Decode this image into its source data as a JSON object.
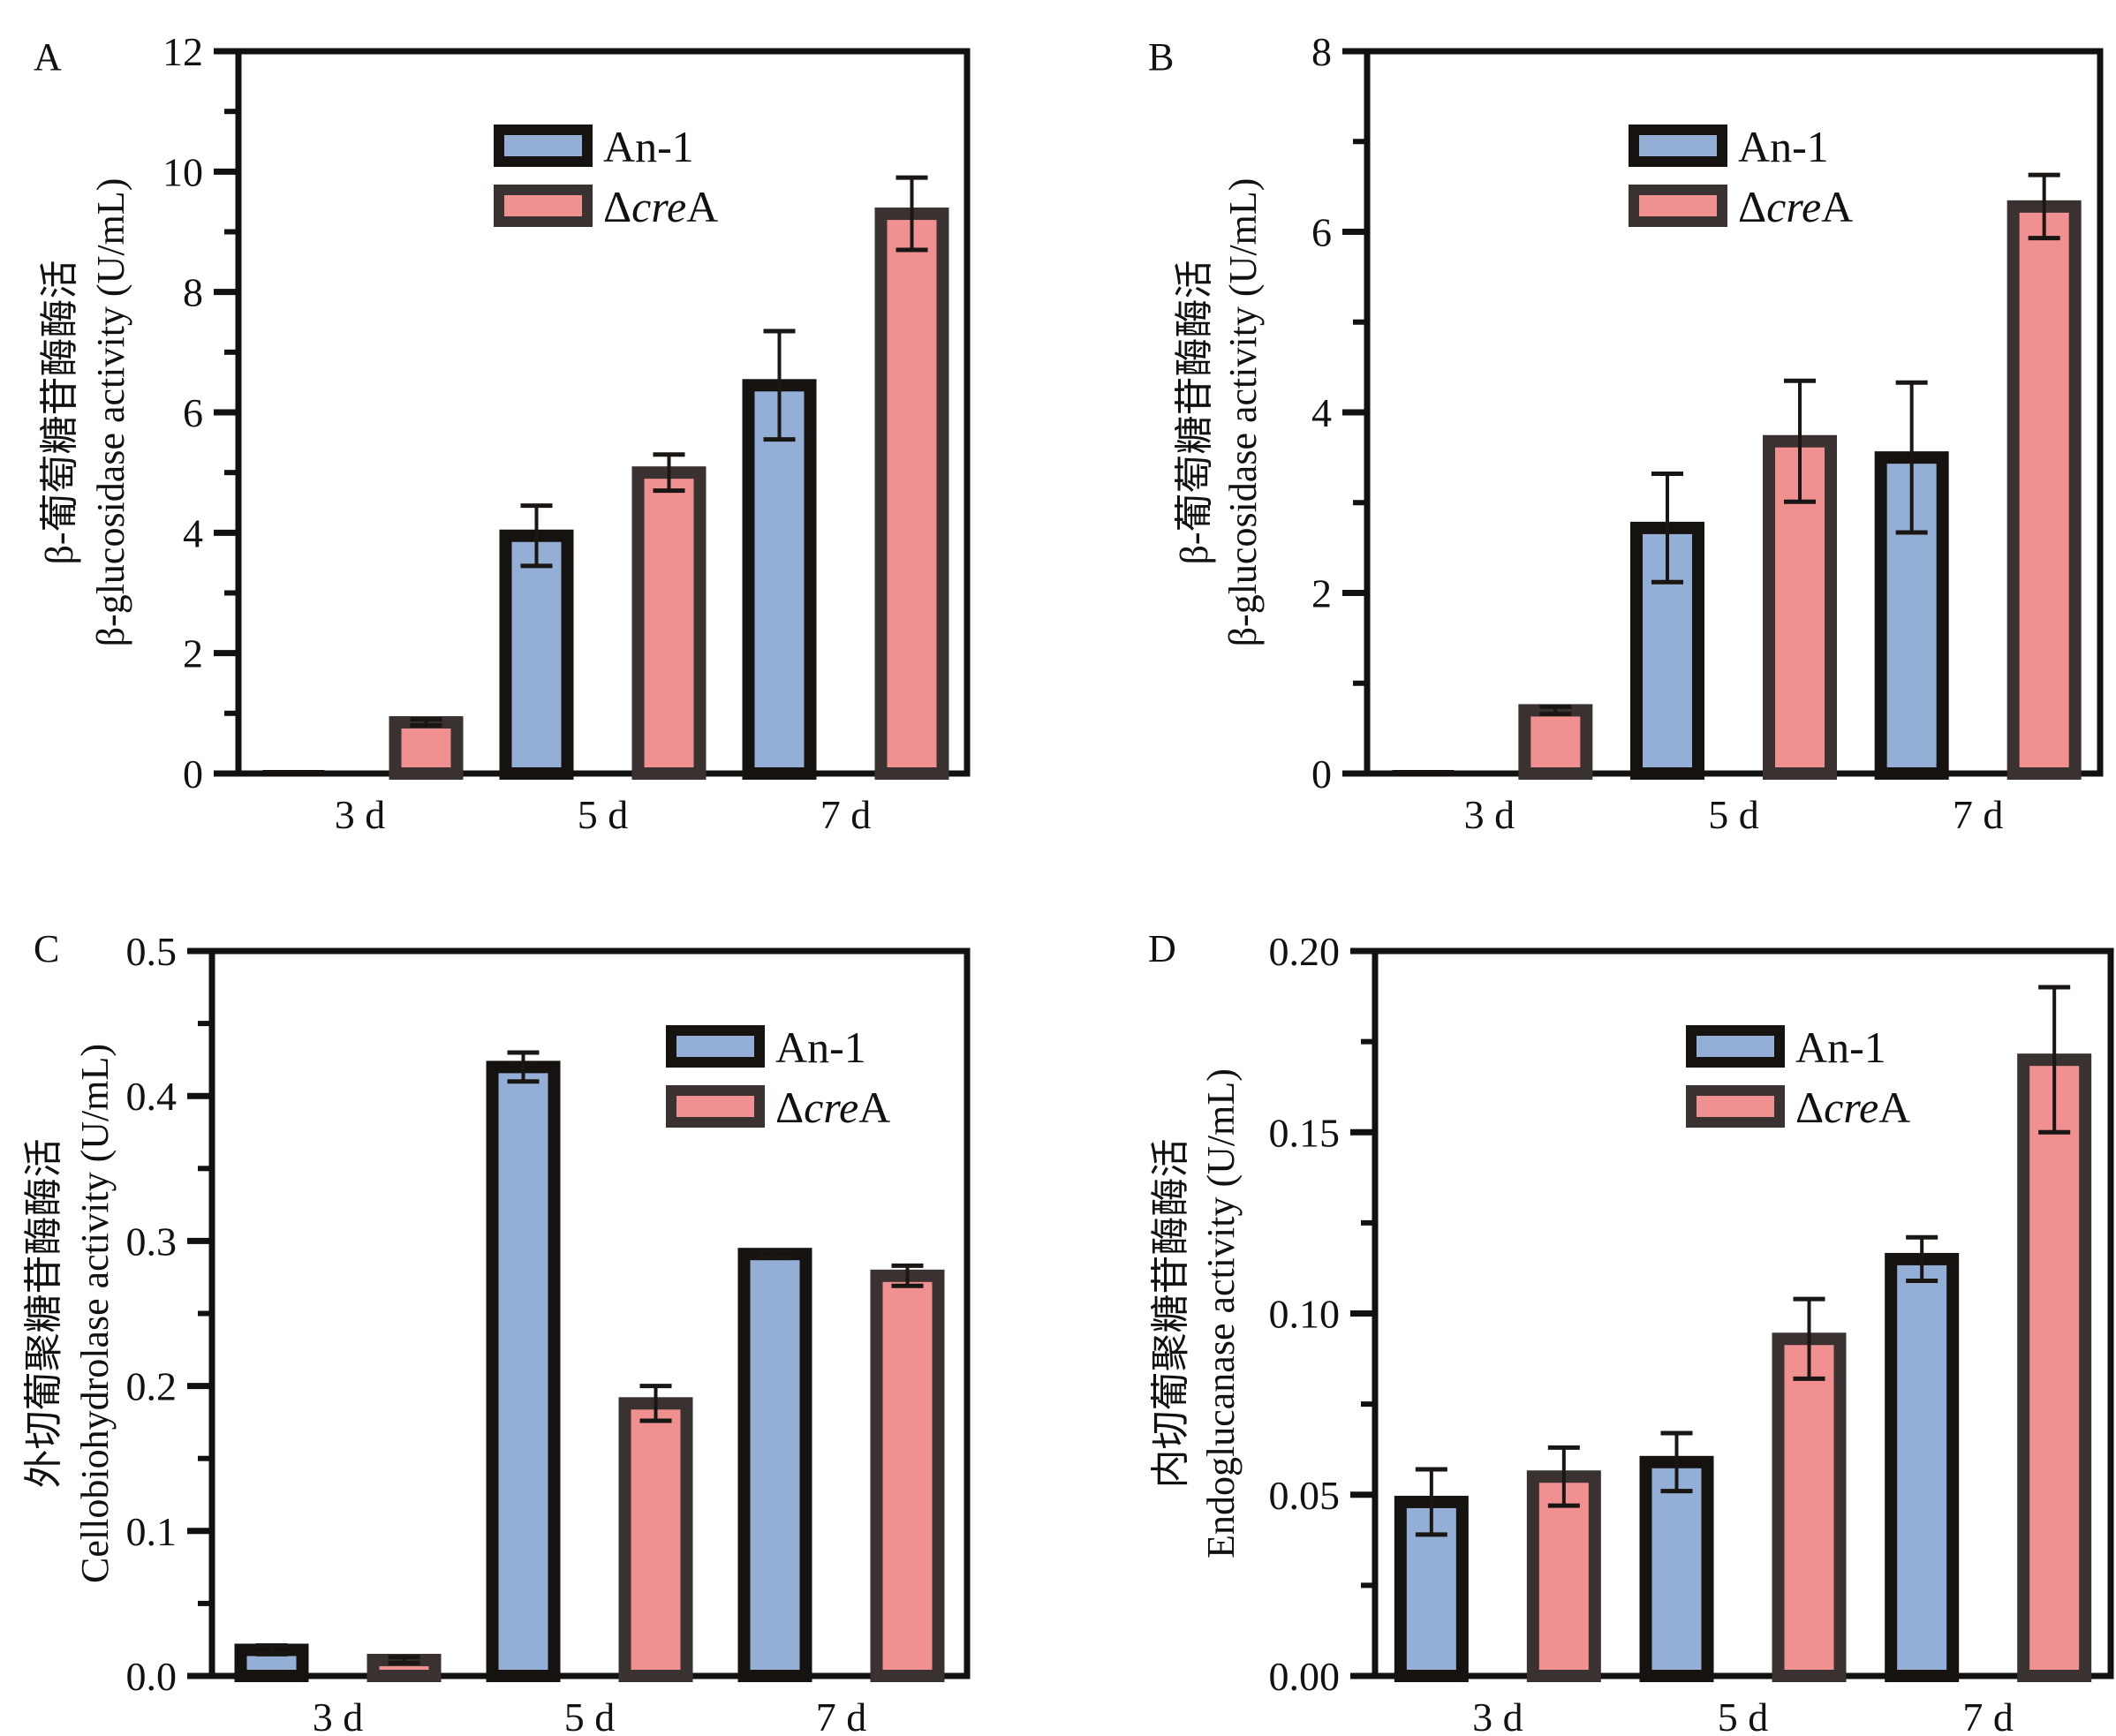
{
  "colors": {
    "an1_fill": "#94afd6",
    "an1_edge": "#161210",
    "crea_fill": "#f09090",
    "crea_edge": "#3a3230",
    "axis": "#111111"
  },
  "chart_data": [
    {
      "type": "bar",
      "panel_label": "A",
      "title": "",
      "ylabel_cn": "β-葡萄糖苷酶酶活",
      "ylabel": "β-glucosidase activity (U/mL)",
      "xlabel": "",
      "categories": [
        "3 d",
        "5 d",
        "7 d"
      ],
      "ylim": [
        0,
        12
      ],
      "yticks": [
        "0",
        "2",
        "4",
        "6",
        "8",
        "10",
        "12"
      ],
      "ytick_values": [
        0,
        2,
        4,
        6,
        8,
        10,
        12
      ],
      "minor_step": 1,
      "legend": {
        "position": "top-center",
        "entries": [
          {
            "name": "An-1",
            "prefix": "",
            "italic": "",
            "suffix": ""
          },
          {
            "name": "ΔcreA",
            "prefix": "Δ",
            "italic": "cre",
            "suffix": "A"
          }
        ]
      },
      "series": [
        {
          "name": "An-1",
          "values": [
            0.0,
            3.95,
            6.45
          ],
          "errors": [
            0.0,
            0.5,
            0.9
          ]
        },
        {
          "name": "ΔcreA",
          "values": [
            0.85,
            5.0,
            9.3
          ],
          "errors": [
            0.05,
            0.3,
            0.6
          ]
        }
      ]
    },
    {
      "type": "bar",
      "panel_label": "B",
      "title": "",
      "ylabel_cn": "β-葡萄糖苷酶酶活",
      "ylabel": "β-glucosidase activity (U/mL)",
      "xlabel": "",
      "categories": [
        "3 d",
        "5 d",
        "7 d"
      ],
      "ylim": [
        0,
        8
      ],
      "yticks": [
        "0",
        "2",
        "4",
        "6",
        "8"
      ],
      "ytick_values": [
        0,
        2,
        4,
        6,
        8
      ],
      "minor_step": 1,
      "legend": {
        "position": "top-center",
        "entries": [
          {
            "name": "An-1",
            "prefix": "",
            "italic": "",
            "suffix": ""
          },
          {
            "name": "ΔcreA",
            "prefix": "Δ",
            "italic": "cre",
            "suffix": "A"
          }
        ]
      },
      "series": [
        {
          "name": "An-1",
          "values": [
            0.0,
            2.72,
            3.5
          ],
          "errors": [
            0.0,
            0.6,
            0.83
          ]
        },
        {
          "name": "ΔcreA",
          "values": [
            0.7,
            3.68,
            6.28
          ],
          "errors": [
            0.04,
            0.67,
            0.35
          ]
        }
      ]
    },
    {
      "type": "bar",
      "panel_label": "C",
      "title": "",
      "ylabel_cn": "外切葡聚糖苷酶酶活",
      "ylabel": "Cellobiohydrolase activity (U/mL)",
      "xlabel": "",
      "categories": [
        "3 d",
        "5 d",
        "7 d"
      ],
      "ylim": [
        0,
        0.5
      ],
      "yticks": [
        "0.0",
        "0.1",
        "0.2",
        "0.3",
        "0.4",
        "0.5"
      ],
      "ytick_values": [
        0,
        0.1,
        0.2,
        0.3,
        0.4,
        0.5
      ],
      "minor_step": 0.05,
      "legend": {
        "position": "top-right",
        "entries": [
          {
            "name": "An-1",
            "prefix": "",
            "italic": "",
            "suffix": ""
          },
          {
            "name": "ΔcreA",
            "prefix": "Δ",
            "italic": "cre",
            "suffix": "A"
          }
        ]
      },
      "series": [
        {
          "name": "An-1",
          "values": [
            0.018,
            0.42,
            0.291
          ],
          "errors": [
            0.003,
            0.01,
            0.002
          ]
        },
        {
          "name": "ΔcreA",
          "values": [
            0.011,
            0.188,
            0.276
          ],
          "errors": [
            0.002,
            0.012,
            0.007
          ]
        }
      ]
    },
    {
      "type": "bar",
      "panel_label": "D",
      "title": "",
      "ylabel_cn": "内切葡聚糖苷酶酶活",
      "ylabel": "Endoglucanase activity (U/mL)",
      "xlabel": "",
      "categories": [
        "3 d",
        "5 d",
        "7 d"
      ],
      "ylim": [
        0,
        0.2
      ],
      "yticks": [
        "0.00",
        "0.05",
        "0.10",
        "0.15",
        "0.20"
      ],
      "ytick_values": [
        0,
        0.05,
        0.1,
        0.15,
        0.2
      ],
      "minor_step": 0.025,
      "legend": {
        "position": "top-right",
        "entries": [
          {
            "name": "An-1",
            "prefix": "",
            "italic": "",
            "suffix": ""
          },
          {
            "name": "ΔcreA",
            "prefix": "Δ",
            "italic": "cre",
            "suffix": "A"
          }
        ]
      },
      "series": [
        {
          "name": "An-1",
          "values": [
            0.048,
            0.059,
            0.115
          ],
          "errors": [
            0.009,
            0.008,
            0.006
          ]
        },
        {
          "name": "ΔcreA",
          "values": [
            0.055,
            0.093,
            0.17
          ],
          "errors": [
            0.008,
            0.011,
            0.02
          ]
        }
      ]
    }
  ]
}
